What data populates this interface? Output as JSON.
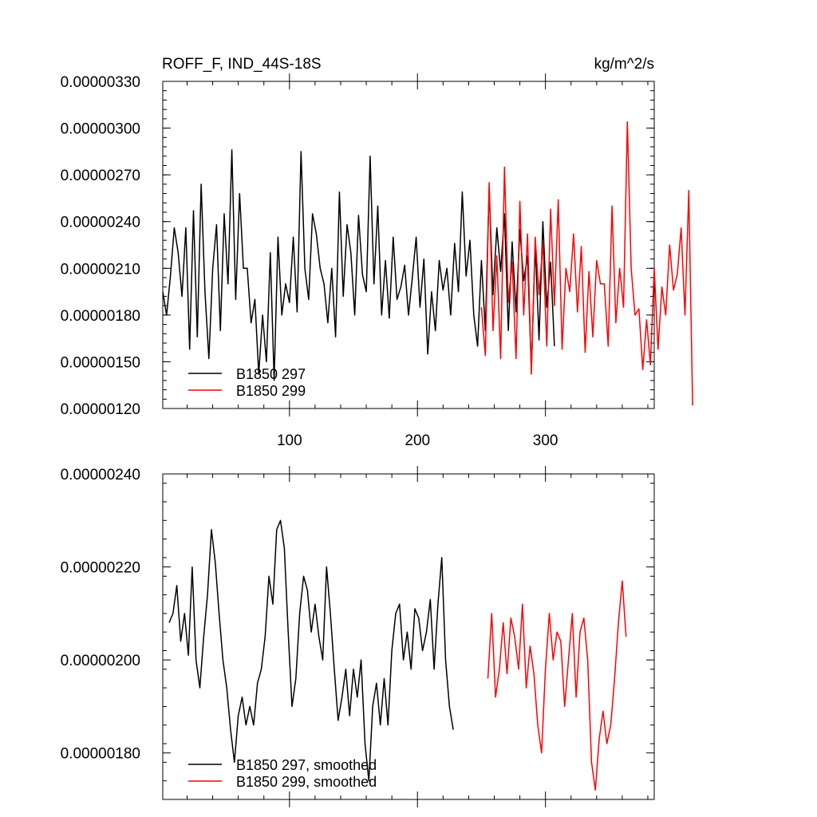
{
  "colors": {
    "series_a": "#000000",
    "series_b": "#ff0000",
    "axes": "#000000",
    "background": "#ffffff"
  },
  "chart_data": [
    {
      "type": "line",
      "title": "ROFF_F, IND_44S-18S",
      "units": "kg/m^2/s",
      "xlabel": "",
      "ylabel": "",
      "xlim": [
        1,
        385
      ],
      "ylim": [
        1.2e-06,
        3.3e-06
      ],
      "xticks": [
        100,
        200,
        300
      ],
      "xtick_labels": [
        "100",
        "200",
        "300"
      ],
      "yticks": [
        1.2e-06,
        1.5e-06,
        1.8e-06,
        2.1e-06,
        2.4e-06,
        2.7e-06,
        3e-06,
        3.3e-06
      ],
      "ytick_labels": [
        "0.00000120",
        "0.00000150",
        "0.00000180",
        "0.00000210",
        "0.00000240",
        "0.00000270",
        "0.00000300",
        "0.00000330"
      ],
      "legend_position": "bottom-left",
      "grid": false,
      "series": [
        {
          "name": "B1850 297",
          "x_start": 1,
          "x_step": 3,
          "values": [
            1.95e-06,
            1.8e-06,
            2.05e-06,
            2.36e-06,
            2.2e-06,
            1.92e-06,
            2.36e-06,
            1.58e-06,
            2.47e-06,
            1.66e-06,
            2.64e-06,
            1.95e-06,
            1.52e-06,
            2.1e-06,
            2.38e-06,
            1.7e-06,
            2.45e-06,
            2e-06,
            2.86e-06,
            1.9e-06,
            2.58e-06,
            2.1e-06,
            2.1e-06,
            1.75e-06,
            1.9e-06,
            1.42e-06,
            1.8e-06,
            1.5e-06,
            2.2e-06,
            1.38e-06,
            2.3e-06,
            1.8e-06,
            2e-06,
            1.88e-06,
            2.3e-06,
            1.82e-06,
            2.85e-06,
            2.1e-06,
            1.9e-06,
            2.45e-06,
            2.32e-06,
            2.1e-06,
            2e-06,
            1.75e-06,
            2.1e-06,
            1.66e-06,
            2.59e-06,
            1.92e-06,
            2.38e-06,
            2.2e-06,
            1.8e-06,
            2.44e-06,
            2.06e-06,
            1.95e-06,
            2.82e-06,
            2e-06,
            2.5e-06,
            1.8e-06,
            2.15e-06,
            1.78e-06,
            2.3e-06,
            1.9e-06,
            1.98e-06,
            2.12e-06,
            1.8e-06,
            2.04e-06,
            2.3e-06,
            1.85e-06,
            2.16e-06,
            1.55e-06,
            1.95e-06,
            1.7e-06,
            2.15e-06,
            1.96e-06,
            2.1e-06,
            1.8e-06,
            2.26e-06,
            1.95e-06,
            2.59e-06,
            2.05e-06,
            2.28e-06,
            1.8e-06,
            1.6e-06,
            2.15e-06,
            1.7e-06,
            2.62e-06,
            1.93e-06,
            2.36e-06,
            2.08e-06,
            2.45e-06,
            1.7e-06,
            2.27e-06,
            1.82e-06,
            2.35e-06,
            2.02e-06,
            2.18e-06,
            1.44e-06,
            2.26e-06,
            1.64e-06,
            2.4e-06,
            1.85e-06,
            2.14e-06,
            1.6e-06
          ]
        },
        {
          "name": "B1850 299",
          "x_start": 250,
          "x_step": 3,
          "values": [
            1.85e-06,
            1.54e-06,
            2.65e-06,
            1.7e-06,
            2.18e-06,
            1.52e-06,
            2.75e-06,
            1.88e-06,
            2.14e-06,
            1.52e-06,
            2.53e-06,
            1.8e-06,
            2.32e-06,
            1.42e-06,
            2.3e-06,
            1.93e-06,
            2.26e-06,
            1.6e-06,
            2.48e-06,
            1.86e-06,
            2.54e-06,
            1.58e-06,
            2.1e-06,
            1.95e-06,
            2.32e-06,
            1.82e-06,
            2.24e-06,
            1.56e-06,
            2.08e-06,
            1.66e-06,
            2.15e-06,
            2e-06,
            2e-06,
            1.6e-06,
            2.5e-06,
            1.75e-06,
            2.1e-06,
            1.85e-06,
            3.04e-06,
            2.1e-06,
            1.8e-06,
            1.84e-06,
            1.45e-06,
            1.77e-06,
            1.48e-06,
            2.1e-06,
            1.58e-06,
            1.98e-06,
            1.8e-06,
            2.25e-06,
            1.96e-06,
            2.06e-06,
            2.36e-06,
            1.8e-06,
            2.6e-06,
            1.22e-06
          ]
        }
      ]
    },
    {
      "type": "line",
      "title": "",
      "xlabel": "",
      "ylabel": "",
      "xlim": [
        1,
        385
      ],
      "ylim": [
        1.7e-06,
        2.4e-06
      ],
      "yticks": [
        1.8e-06,
        2e-06,
        2.2e-06,
        2.4e-06
      ],
      "ytick_labels": [
        "0.00000180",
        "0.00000200",
        "0.00000220",
        "0.00000240"
      ],
      "legend_position": "bottom-left",
      "grid": false,
      "series": [
        {
          "name": "B1850 297, smoothed",
          "x_start": 6,
          "x_step": 3,
          "values": [
            2.08e-06,
            2.1e-06,
            2.16e-06,
            2.04e-06,
            2.1e-06,
            2.01e-06,
            2.2e-06,
            2e-06,
            1.94e-06,
            2.05e-06,
            2.14e-06,
            2.28e-06,
            2.21e-06,
            2.1e-06,
            2e-06,
            1.94e-06,
            1.85e-06,
            1.78e-06,
            1.88e-06,
            1.92e-06,
            1.86e-06,
            1.9e-06,
            1.86e-06,
            1.95e-06,
            1.98e-06,
            2.05e-06,
            2.18e-06,
            2.12e-06,
            2.28e-06,
            2.3e-06,
            2.24e-06,
            2.06e-06,
            1.9e-06,
            1.96e-06,
            2.1e-06,
            2.18e-06,
            2.15e-06,
            2.06e-06,
            2.12e-06,
            2.05e-06,
            2e-06,
            2.2e-06,
            2.1e-06,
            1.98e-06,
            1.87e-06,
            1.92e-06,
            1.98e-06,
            1.88e-06,
            1.98e-06,
            1.92e-06,
            2e-06,
            1.82e-06,
            1.74e-06,
            1.9e-06,
            1.95e-06,
            1.86e-06,
            1.96e-06,
            1.86e-06,
            2.02e-06,
            2.1e-06,
            2.12e-06,
            2e-06,
            2.06e-06,
            1.98e-06,
            2.11e-06,
            2.09e-06,
            2.02e-06,
            2.06e-06,
            2.13e-06,
            1.98e-06,
            2.12e-06,
            2.22e-06,
            2e-06,
            1.9e-06,
            1.85e-06
          ]
        },
        {
          "name": "B1850 299, smoothed",
          "x_start": 255,
          "x_step": 3,
          "values": [
            1.96e-06,
            2.1e-06,
            1.92e-06,
            1.98e-06,
            2.08e-06,
            1.97e-06,
            2.09e-06,
            2.05e-06,
            1.98e-06,
            2.12e-06,
            1.94e-06,
            2.03e-06,
            1.97e-06,
            1.86e-06,
            1.8e-06,
            1.98e-06,
            2.1e-06,
            2e-06,
            2.06e-06,
            2.04e-06,
            1.9e-06,
            2e-06,
            2.1e-06,
            1.92e-06,
            2.06e-06,
            2.09e-06,
            2e-06,
            1.78e-06,
            1.72e-06,
            1.83e-06,
            1.89e-06,
            1.82e-06,
            1.86e-06,
            1.96e-06,
            2.08e-06,
            2.17e-06,
            2.05e-06
          ]
        }
      ]
    }
  ]
}
